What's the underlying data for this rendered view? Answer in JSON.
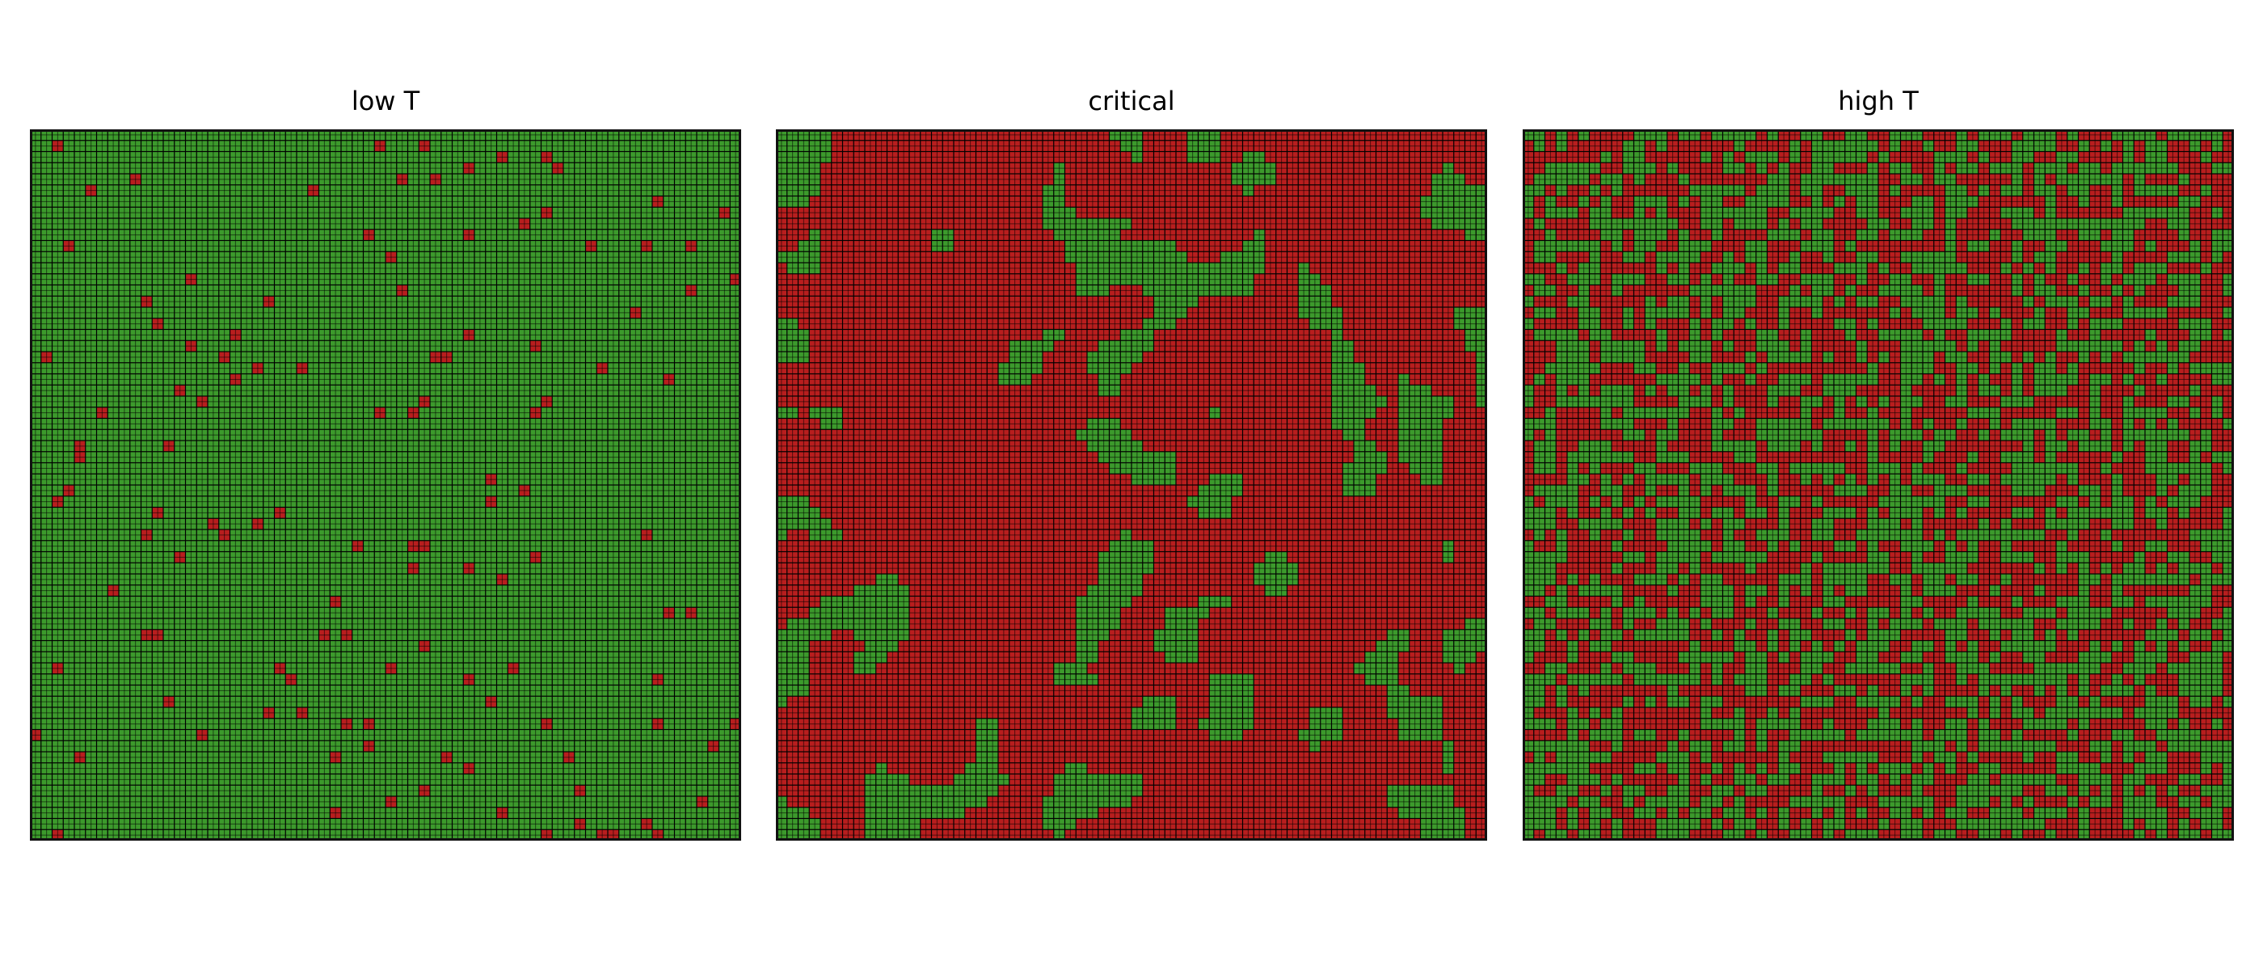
{
  "figure": {
    "panels": [
      {
        "title": "low T"
      },
      {
        "title": "critical"
      },
      {
        "title": "high T"
      }
    ]
  },
  "chart_data": [
    {
      "type": "heatmap",
      "title": "low T",
      "lattice": {
        "rows": 64,
        "cols": 64
      },
      "values": [
        1,
        -1
      ],
      "colors": {
        "1": "#3c9a2c",
        "-1": "#b81e1e",
        "background": "#000000",
        "frame": "#111111"
      },
      "fraction_up": 0.97,
      "cluster_scale": 0,
      "grid": true
    },
    {
      "type": "heatmap",
      "title": "critical",
      "lattice": {
        "rows": 64,
        "cols": 64
      },
      "values": [
        1,
        -1
      ],
      "colors": {
        "1": "#3c9a2c",
        "-1": "#b81e1e",
        "background": "#000000",
        "frame": "#111111"
      },
      "fraction_up": 0.2,
      "cluster_scale": 3,
      "grid": true
    },
    {
      "type": "heatmap",
      "title": "high T",
      "lattice": {
        "rows": 64,
        "cols": 64
      },
      "values": [
        1,
        -1
      ],
      "colors": {
        "1": "#3c9a2c",
        "-1": "#b81e1e",
        "background": "#000000",
        "frame": "#111111"
      },
      "fraction_up": 0.5,
      "cluster_scale": 0,
      "grid": true
    }
  ]
}
